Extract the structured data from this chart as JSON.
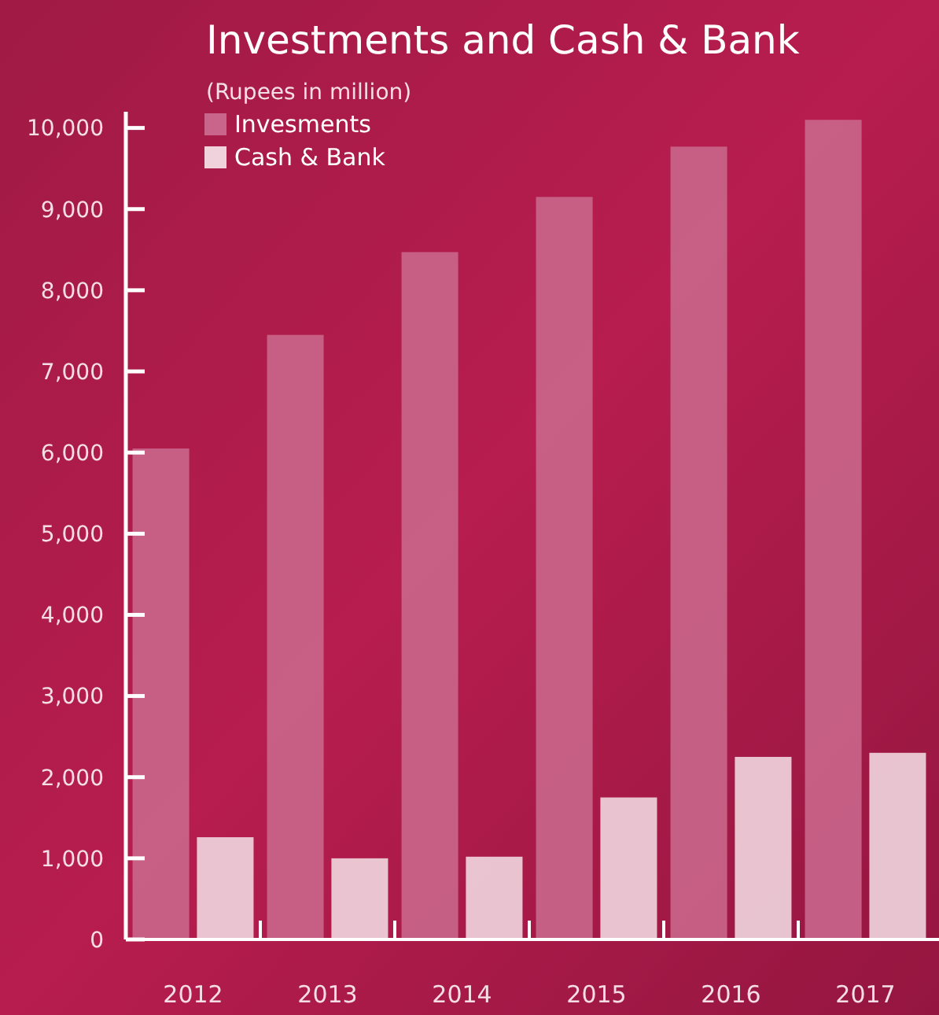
{
  "chart_data": {
    "type": "bar",
    "title": "Investments and Cash & Bank",
    "subtitle": "(Rupees in million)",
    "categories": [
      "2012",
      "2013",
      "2014",
      "2015",
      "2016",
      "2017"
    ],
    "series": [
      {
        "name": "Invesments",
        "color": "#c9658a",
        "values": [
          6050,
          7450,
          8470,
          9150,
          9770,
          10100
        ]
      },
      {
        "name": "Cash & Bank",
        "color": "#efd2dc",
        "values": [
          1260,
          1000,
          1020,
          1750,
          2250,
          2300
        ]
      }
    ],
    "ylim": [
      0,
      10200
    ],
    "yticks": [
      0,
      {
        "value": 1000,
        "label": "1,000"
      },
      {
        "value": 2000,
        "label": "2,000"
      },
      {
        "value": 3000,
        "label": "3,000"
      },
      {
        "value": 4000,
        "label": "4,000"
      },
      {
        "value": 5000,
        "label": "5,000"
      },
      {
        "value": 6000,
        "label": "6,000"
      },
      {
        "value": 7000,
        "label": "7,000"
      },
      {
        "value": 8000,
        "label": "8,000"
      },
      {
        "value": 9000,
        "label": "9,000"
      },
      {
        "value": 10000,
        "label": "10,000"
      }
    ],
    "legend": "top left",
    "grid": false
  }
}
